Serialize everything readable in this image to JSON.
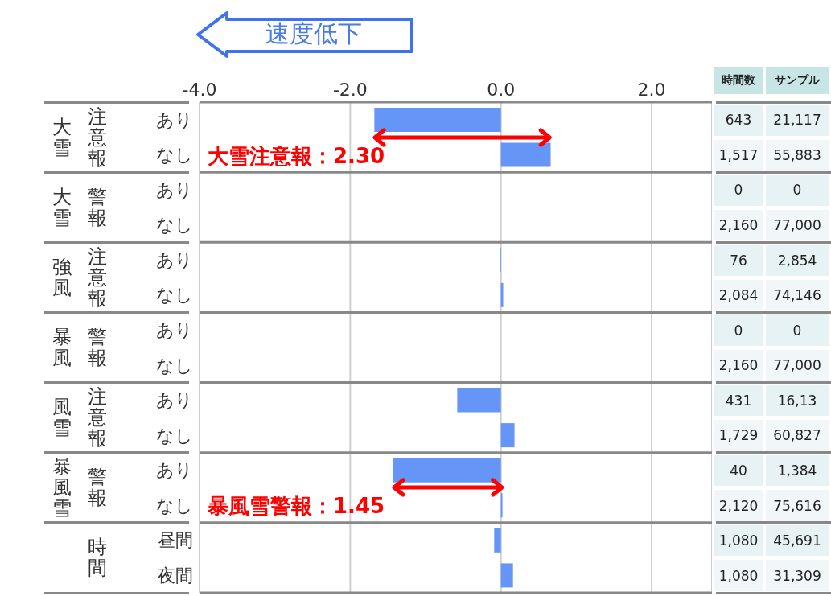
{
  "chart_data": {
    "type": "bar",
    "orientation": "horizontal",
    "categories": [
      "あり",
      "なし",
      "あり",
      "なし",
      "あり",
      "なし",
      "あり",
      "なし",
      "あり",
      "なし",
      "あり",
      "なし",
      "昼間",
      "夜間"
    ],
    "values": [
      -1.68,
      0.66,
      null,
      0,
      -0.01,
      0.03,
      null,
      0,
      -0.58,
      0.18,
      -1.43,
      0.02,
      -0.09,
      0.16
    ],
    "color": "#6495f7",
    "xlim": [
      -4,
      2.8
    ],
    "xticks": [
      {
        "value": -4,
        "label": "-4.0"
      },
      {
        "value": -2,
        "label": "-2.0"
      },
      {
        "value": 0,
        "label": "0.0"
      },
      {
        "value": 2,
        "label": "2.0"
      }
    ],
    "grid": "x",
    "annotations": [
      "速度低下",
      "大雪注意報：2.30",
      "暴風雪警報：1.45",
      "大雪",
      "注意報",
      "大雪",
      "警報",
      "強風",
      "注意報",
      "暴風",
      "警報",
      "風雪",
      "注意報",
      "暴風雪",
      "警報",
      "時間",
      "時間数",
      "サンプル",
      "643",
      "21,117",
      "1,517",
      "55,883",
      "0",
      "0",
      "2,160",
      "77,000",
      "76",
      "2,854",
      "2,084",
      "74,146",
      "0",
      "0",
      "2,160",
      "77,000",
      "431",
      "16,13",
      "1,729",
      "60,827",
      "40",
      "1,384",
      "2,120",
      "75,616",
      "1,080",
      "45,691",
      "1,080",
      "31,309"
    ]
  }
}
